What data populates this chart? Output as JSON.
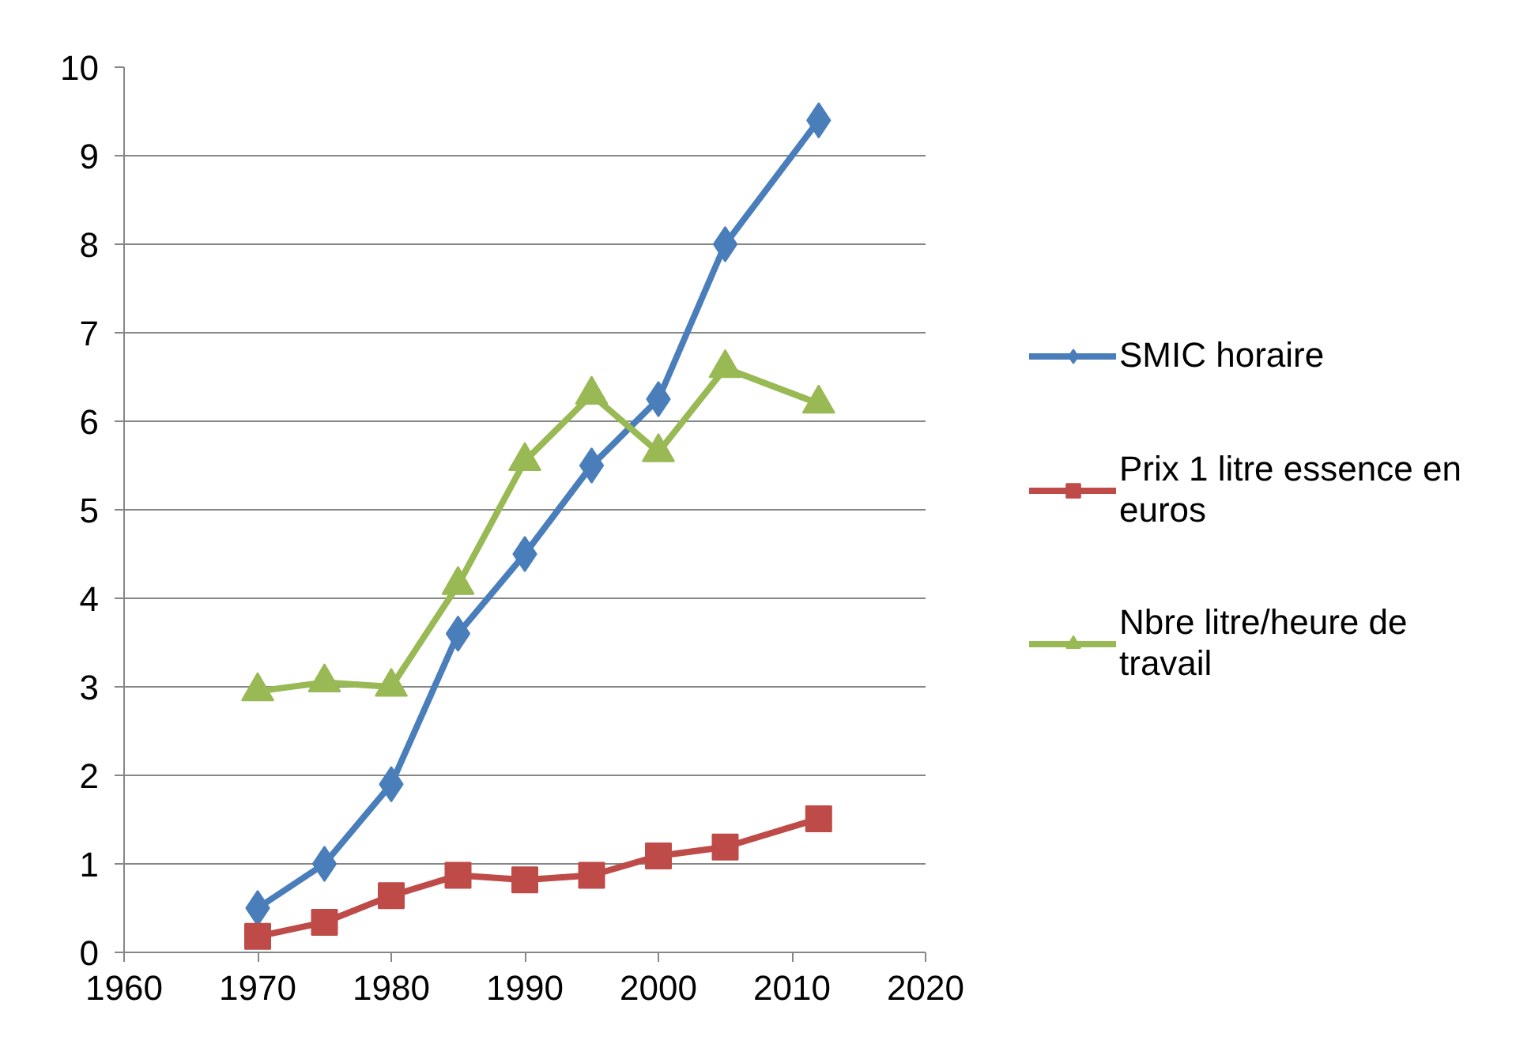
{
  "chart_data": {
    "type": "line",
    "x": [
      1970,
      1975,
      1980,
      1985,
      1990,
      1995,
      2000,
      2005,
      2012
    ],
    "series": [
      {
        "name": "SMIC horaire",
        "color": "#4a7ebb",
        "marker": "diamond",
        "values": [
          0.5,
          1.0,
          1.9,
          3.6,
          4.5,
          5.5,
          6.25,
          8.0,
          9.4
        ]
      },
      {
        "name": "Prix 1 litre essence en euros",
        "color": "#be4b48",
        "marker": "square",
        "values": [
          0.18,
          0.34,
          0.64,
          0.87,
          0.82,
          0.87,
          1.09,
          1.19,
          1.51
        ]
      },
      {
        "name": "Nbre litre/heure de travail",
        "color": "#98b954",
        "marker": "triangle",
        "values": [
          2.95,
          3.05,
          3.0,
          4.15,
          5.55,
          6.3,
          5.65,
          6.6,
          6.2
        ]
      }
    ],
    "xlim": [
      1960,
      2020
    ],
    "xticks": [
      1960,
      1970,
      1980,
      1990,
      2000,
      2010,
      2020
    ],
    "ylim": [
      0,
      10
    ],
    "yticks": [
      0,
      1,
      2,
      3,
      4,
      5,
      6,
      7,
      8,
      9,
      10
    ],
    "grid": "y",
    "legend": "right",
    "line_style": "solid"
  }
}
